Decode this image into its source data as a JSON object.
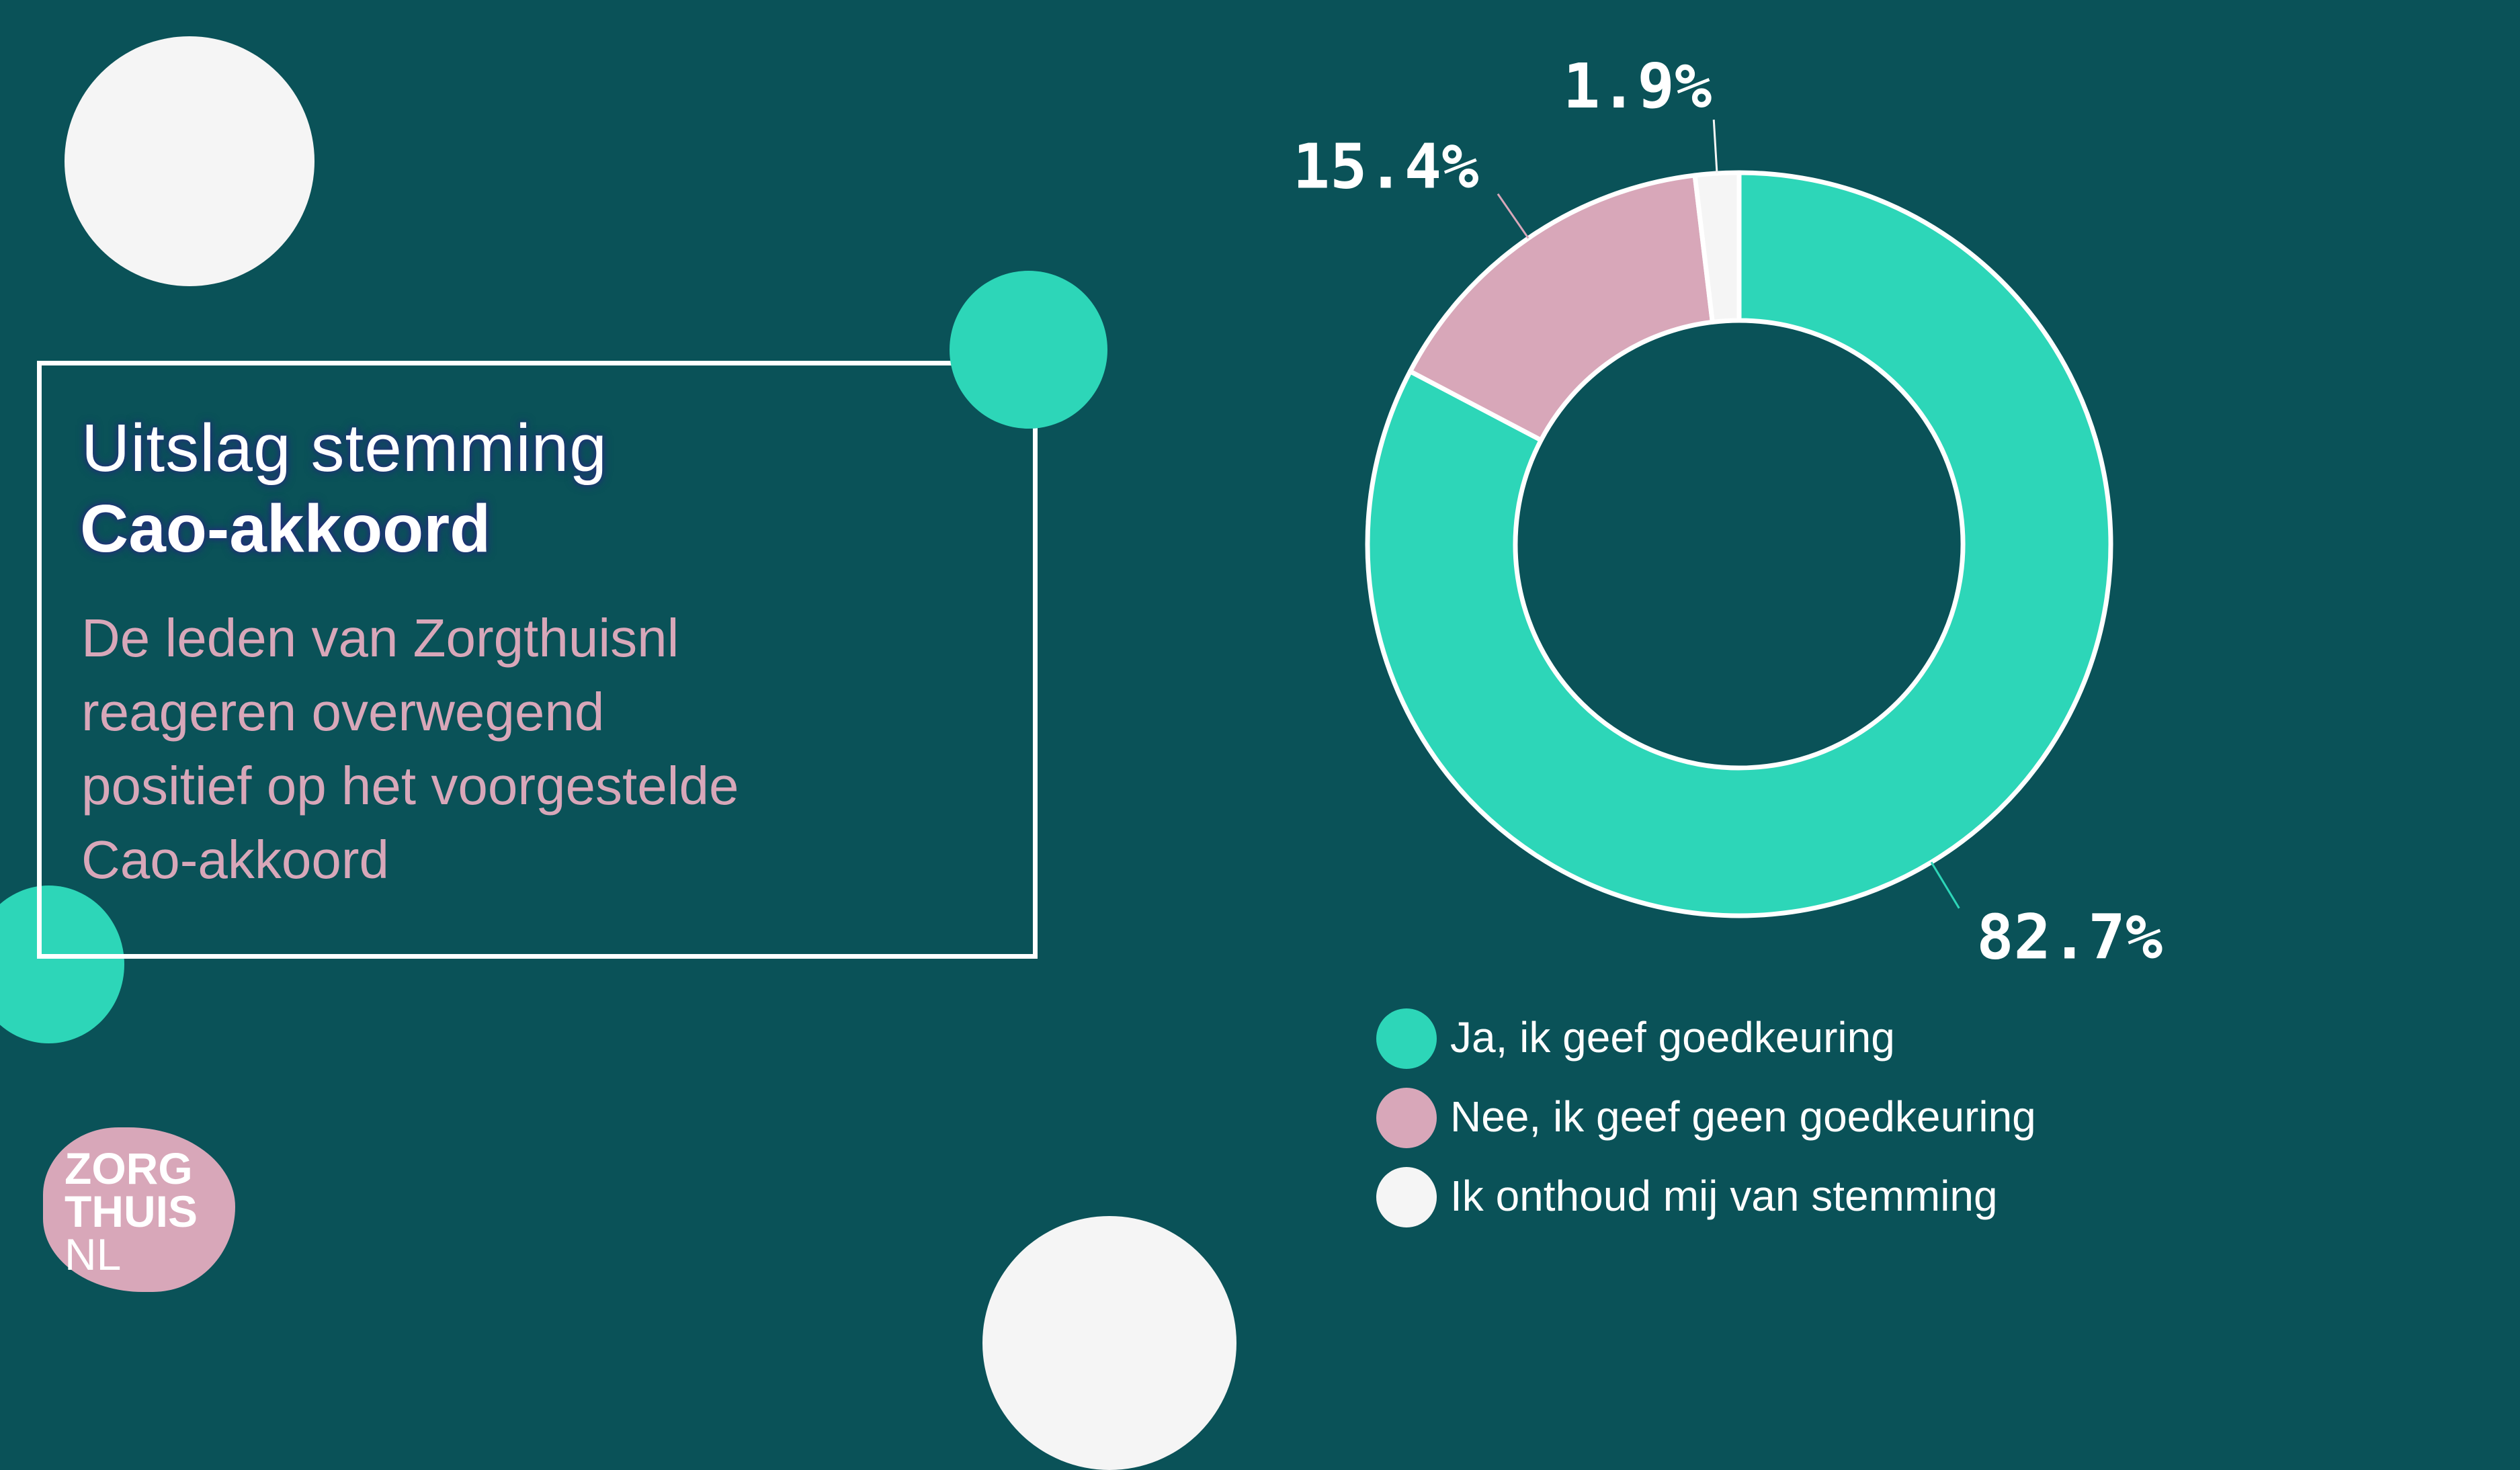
{
  "title": {
    "line1": "Uitslag stemming",
    "line2": "Cao-akkoord"
  },
  "description": "De leden van Zorgthuisnl\nreageren overwegend\npositief op het voorgestelde\nCao-akkoord",
  "logo": {
    "line1": "ZORG",
    "line2": "THUIS",
    "line3": "NL"
  },
  "colors": {
    "background": "#0a5258",
    "teal": "#2dd6b8",
    "pink": "#d8a7b9",
    "white": "#f5f5f5"
  },
  "chart_data": {
    "type": "pie",
    "variant": "donut",
    "title": "",
    "slices": [
      {
        "label": "Ja, ik geef goedkeuring",
        "value": 82.7,
        "display": "82.7%",
        "color": "#2dd6b8"
      },
      {
        "label": "Nee, ik geef geen goedkeuring",
        "value": 15.4,
        "display": "15.4%",
        "color": "#d8a7b9"
      },
      {
        "label": "Ik onthoud mij van stemming",
        "value": 1.9,
        "display": "1.9%",
        "color": "#f5f5f5"
      }
    ],
    "legend_position": "bottom"
  }
}
